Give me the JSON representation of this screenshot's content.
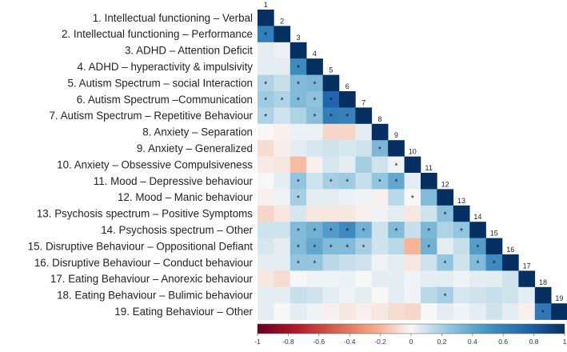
{
  "chart_data": {
    "type": "heatmap",
    "subtype": "lower-triangular correlation matrix",
    "row_labels": [
      "1. Intellectual functioning – Verbal",
      "2. Intellectual functioning – Performance",
      "3. ADHD – Attention Deficit",
      "4. ADHD – hyperactivity & impulsivity",
      "5. Autism Spectrum – social Interaction",
      "6. Autism Spectrum –Communication",
      "7. Autism Spectrum – Repetitive Behaviour",
      "8. Anxiety – Separation",
      "9. Anxiety – Generalized",
      "10. Anxiety – Obsessive Compulsiveness",
      "11. Mood – Depressive behaviour",
      "12. Mood – Manic behaviour",
      "13. Psychosis spectrum – Positive Symptoms",
      "14. Psychosis spectrum – Other",
      "15. Disruptive Behaviour – Oppositional Defiant",
      "16. Disruptive Behaviour – Conduct behaviour",
      "17. Eating Behaviour – Anorexic behaviour",
      "18. Eating Behaviour – Bulimic behaviour",
      "19. Eating Behaviour – Other"
    ],
    "column_labels": [
      "1",
      "2",
      "3",
      "4",
      "5",
      "6",
      "7",
      "8",
      "9",
      "10",
      "11",
      "12",
      "13",
      "14",
      "15",
      "16",
      "17",
      "18",
      "19"
    ],
    "values": [
      [
        1
      ],
      [
        0.62,
        1
      ],
      [
        0.05,
        0.03,
        1
      ],
      [
        0.05,
        0.05,
        0.55,
        1
      ],
      [
        0.18,
        0.12,
        0.3,
        0.32,
        1
      ],
      [
        0.22,
        0.18,
        0.3,
        0.26,
        0.75,
        1
      ],
      [
        0.18,
        0.1,
        0.18,
        0.28,
        0.62,
        0.6,
        1
      ],
      [
        0.0,
        -0.02,
        0.03,
        0.03,
        -0.1,
        -0.1,
        0.05,
        1
      ],
      [
        -0.08,
        -0.03,
        0.05,
        0.08,
        0.1,
        0.08,
        0.1,
        0.32,
        1
      ],
      [
        -0.04,
        -0.05,
        -0.18,
        -0.02,
        0.08,
        0.05,
        0.2,
        0.1,
        0.02,
        1
      ],
      [
        0.0,
        0.05,
        0.25,
        0.1,
        0.2,
        0.22,
        0.12,
        0.25,
        0.4,
        0.05,
        1
      ],
      [
        -0.02,
        0.02,
        0.2,
        0.05,
        0.05,
        0.03,
        0.02,
        -0.02,
        0.15,
        0.0,
        0.3,
        1
      ],
      [
        -0.1,
        -0.05,
        0.08,
        -0.05,
        -0.05,
        -0.05,
        -0.02,
        0.02,
        0.05,
        -0.05,
        0.1,
        0.28,
        1
      ],
      [
        0.1,
        0.1,
        0.3,
        0.35,
        0.45,
        0.55,
        0.35,
        0.1,
        0.3,
        0.12,
        0.32,
        0.18,
        0.25,
        1
      ],
      [
        0.08,
        0.05,
        0.3,
        0.4,
        0.3,
        0.3,
        0.2,
        0.1,
        0.15,
        -0.2,
        0.35,
        0.05,
        0.12,
        0.45,
        1
      ],
      [
        0.05,
        0.05,
        0.25,
        0.25,
        0.15,
        0.12,
        0.1,
        0.02,
        0.05,
        -0.05,
        0.1,
        0.25,
        0.1,
        0.3,
        0.55,
        1
      ],
      [
        -0.05,
        -0.08,
        0.0,
        0.02,
        0.02,
        0.03,
        0.0,
        0.05,
        0.05,
        0.02,
        0.05,
        0.05,
        0.02,
        0.05,
        0.05,
        0.1,
        1
      ],
      [
        0.05,
        0.05,
        0.12,
        0.1,
        0.05,
        0.02,
        0.05,
        0.0,
        0.05,
        0.02,
        0.15,
        0.2,
        0.08,
        0.1,
        0.12,
        0.1,
        0.05,
        1
      ],
      [
        0.05,
        0.0,
        0.05,
        0.02,
        -0.02,
        -0.05,
        -0.02,
        -0.05,
        -0.08,
        -0.1,
        0.0,
        0.05,
        0.02,
        0.05,
        0.1,
        0.05,
        -0.02,
        0.65,
        1
      ]
    ],
    "significant_marker": "*",
    "significant_cells": [
      [
        2,
        1
      ],
      [
        4,
        3
      ],
      [
        5,
        1
      ],
      [
        5,
        3
      ],
      [
        5,
        4
      ],
      [
        6,
        1
      ],
      [
        6,
        2
      ],
      [
        6,
        3
      ],
      [
        6,
        4
      ],
      [
        6,
        5
      ],
      [
        7,
        1
      ],
      [
        7,
        4
      ],
      [
        7,
        5
      ],
      [
        7,
        6
      ],
      [
        9,
        8
      ],
      [
        10,
        9
      ],
      [
        11,
        3
      ],
      [
        11,
        5
      ],
      [
        11,
        6
      ],
      [
        11,
        8
      ],
      [
        11,
        9
      ],
      [
        12,
        3
      ],
      [
        12,
        10
      ],
      [
        13,
        12
      ],
      [
        14,
        3
      ],
      [
        14,
        4
      ],
      [
        14,
        5
      ],
      [
        14,
        6
      ],
      [
        14,
        7
      ],
      [
        14,
        9
      ],
      [
        14,
        11
      ],
      [
        14,
        13
      ],
      [
        15,
        3
      ],
      [
        15,
        4
      ],
      [
        15,
        5
      ],
      [
        15,
        6
      ],
      [
        15,
        7
      ],
      [
        15,
        11
      ],
      [
        15,
        14
      ],
      [
        16,
        3
      ],
      [
        16,
        4
      ],
      [
        16,
        12
      ],
      [
        16,
        14
      ],
      [
        16,
        15
      ],
      [
        18,
        12
      ],
      [
        19,
        18
      ]
    ],
    "colorbar": {
      "range": [
        -1,
        1
      ],
      "ticks": [
        "-1",
        "-0.8",
        "-0.6",
        "-0.4",
        "-0.2",
        "0",
        "0.2",
        "0.4",
        "0.6",
        "0.8",
        "1"
      ],
      "low_color": "#67001f",
      "mid_color": "#f7f7f7",
      "high_color": "#053061"
    }
  }
}
